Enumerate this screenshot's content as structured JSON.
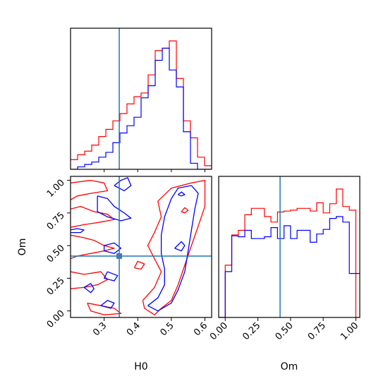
{
  "figure": {
    "type": "corner-plot",
    "parameters": [
      "H0",
      "Om"
    ],
    "colors": {
      "red": "#ff0000",
      "blue": "#0000ff",
      "truth": "#1f77b4"
    }
  },
  "chart_data": [
    {
      "type": "histogram",
      "panel": "H0 marginal",
      "xlim": [
        0.2,
        0.62
      ],
      "truth": 0.345,
      "bin_edges": [
        0.2,
        0.221,
        0.242,
        0.263,
        0.284,
        0.305,
        0.326,
        0.347,
        0.368,
        0.389,
        0.41,
        0.431,
        0.452,
        0.473,
        0.494,
        0.515,
        0.536,
        0.557,
        0.578,
        0.599,
        0.62
      ],
      "series": [
        {
          "color": "red",
          "values": [
            0.08,
            0.12,
            0.15,
            0.2,
            0.27,
            0.33,
            0.4,
            0.46,
            0.54,
            0.6,
            0.63,
            0.78,
            0.98,
            1.0,
            1.06,
            0.75,
            0.4,
            0.26,
            0.1,
            0.03
          ]
        },
        {
          "color": "blue",
          "values": [
            0.0,
            0.02,
            0.04,
            0.06,
            0.1,
            0.14,
            0.22,
            0.3,
            0.36,
            0.43,
            0.59,
            0.69,
            0.9,
            1.0,
            0.82,
            0.68,
            0.31,
            0.05,
            0.0,
            0.0
          ]
        }
      ]
    },
    {
      "type": "contour",
      "panel": "H0 vs Om joint",
      "xlabel": "H0",
      "ylabel": "Om",
      "xlim": [
        0.2,
        0.62
      ],
      "ylim": [
        -0.05,
        1.03
      ],
      "xticks": [
        "0.3",
        "0.4",
        "0.5",
        "0.6"
      ],
      "yticks": [
        "0.00",
        "0.25",
        "0.50",
        "0.75",
        "1.00"
      ],
      "truth": [
        0.345,
        0.42
      ],
      "series": [
        {
          "color": "red",
          "contours": [
            [
              [
                0.2,
                0.98
              ],
              [
                0.26,
                1.0
              ],
              [
                0.3,
                0.98
              ],
              [
                0.31,
                0.92
              ],
              [
                0.26,
                0.9
              ],
              [
                0.22,
                0.88
              ],
              [
                0.2,
                0.85
              ]
            ],
            [
              [
                0.2,
                0.78
              ],
              [
                0.23,
                0.8
              ],
              [
                0.27,
                0.76
              ],
              [
                0.31,
                0.74
              ],
              [
                0.33,
                0.7
              ],
              [
                0.29,
                0.68
              ],
              [
                0.24,
                0.66
              ],
              [
                0.2,
                0.64
              ]
            ],
            [
              [
                0.2,
                0.58
              ],
              [
                0.24,
                0.56
              ],
              [
                0.27,
                0.54
              ],
              [
                0.3,
                0.5
              ],
              [
                0.33,
                0.48
              ],
              [
                0.3,
                0.46
              ],
              [
                0.26,
                0.44
              ],
              [
                0.22,
                0.42
              ],
              [
                0.2,
                0.4
              ]
            ],
            [
              [
                0.2,
                0.3
              ],
              [
                0.24,
                0.28
              ],
              [
                0.29,
                0.3
              ],
              [
                0.31,
                0.24
              ],
              [
                0.28,
                0.2
              ],
              [
                0.24,
                0.18
              ],
              [
                0.2,
                0.17
              ]
            ],
            [
              [
                0.25,
                0.06
              ],
              [
                0.29,
                0.04
              ],
              [
                0.33,
                0.02
              ],
              [
                0.35,
                -0.02
              ],
              [
                0.3,
                -0.03
              ],
              [
                0.26,
                0.0
              ],
              [
                0.25,
                0.06
              ]
            ],
            [
              [
                0.415,
                0.08
              ],
              [
                0.45,
                0.18
              ],
              [
                0.47,
                0.3
              ],
              [
                0.45,
                0.4
              ],
              [
                0.43,
                0.5
              ],
              [
                0.45,
                0.6
              ],
              [
                0.47,
                0.72
              ],
              [
                0.46,
                0.84
              ],
              [
                0.5,
                0.94
              ],
              [
                0.56,
                0.98
              ],
              [
                0.6,
                1.0
              ],
              [
                0.6,
                0.8
              ],
              [
                0.58,
                0.65
              ],
              [
                0.56,
                0.5
              ],
              [
                0.54,
                0.35
              ],
              [
                0.52,
                0.2
              ],
              [
                0.5,
                0.08
              ],
              [
                0.47,
                0.02
              ],
              [
                0.45,
                -0.03
              ],
              [
                0.42,
                0.02
              ],
              [
                0.415,
                0.08
              ]
            ],
            [
              [
                0.39,
                0.33
              ],
              [
                0.4,
                0.38
              ],
              [
                0.42,
                0.36
              ],
              [
                0.41,
                0.32
              ],
              [
                0.39,
                0.33
              ]
            ],
            [
              [
                0.53,
                0.76
              ],
              [
                0.54,
                0.79
              ],
              [
                0.55,
                0.77
              ],
              [
                0.54,
                0.75
              ],
              [
                0.53,
                0.76
              ]
            ]
          ]
        },
        {
          "color": "blue",
          "contours": [
            [
              [
                0.33,
                0.96
              ],
              [
                0.35,
                1.0
              ],
              [
                0.37,
                1.02
              ],
              [
                0.38,
                0.96
              ],
              [
                0.36,
                0.92
              ],
              [
                0.33,
                0.96
              ]
            ],
            [
              [
                0.28,
                0.88
              ],
              [
                0.31,
                0.86
              ],
              [
                0.33,
                0.8
              ],
              [
                0.36,
                0.75
              ],
              [
                0.38,
                0.71
              ],
              [
                0.35,
                0.69
              ],
              [
                0.31,
                0.72
              ],
              [
                0.28,
                0.76
              ],
              [
                0.28,
                0.88
              ]
            ],
            [
              [
                0.2,
                0.62
              ],
              [
                0.22,
                0.63
              ],
              [
                0.24,
                0.62
              ],
              [
                0.23,
                0.6
              ],
              [
                0.2,
                0.6
              ]
            ],
            [
              [
                0.3,
                0.5
              ],
              [
                0.33,
                0.52
              ],
              [
                0.35,
                0.48
              ],
              [
                0.33,
                0.44
              ],
              [
                0.3,
                0.46
              ],
              [
                0.3,
                0.5
              ]
            ],
            [
              [
                0.24,
                0.18
              ],
              [
                0.26,
                0.21
              ],
              [
                0.27,
                0.17
              ],
              [
                0.26,
                0.14
              ],
              [
                0.24,
                0.18
              ]
            ],
            [
              [
                0.31,
                0.3
              ],
              [
                0.34,
                0.27
              ],
              [
                0.33,
                0.23
              ],
              [
                0.3,
                0.25
              ],
              [
                0.31,
                0.3
              ]
            ],
            [
              [
                0.29,
                0.04
              ],
              [
                0.31,
                0.08
              ],
              [
                0.33,
                0.06
              ],
              [
                0.32,
                0.02
              ],
              [
                0.29,
                0.04
              ]
            ],
            [
              [
                0.43,
                0.04
              ],
              [
                0.46,
                0.1
              ],
              [
                0.48,
                0.2
              ],
              [
                0.48,
                0.32
              ],
              [
                0.47,
                0.44
              ],
              [
                0.47,
                0.58
              ],
              [
                0.48,
                0.72
              ],
              [
                0.5,
                0.86
              ],
              [
                0.52,
                0.94
              ],
              [
                0.56,
                0.96
              ],
              [
                0.58,
                0.9
              ],
              [
                0.57,
                0.78
              ],
              [
                0.56,
                0.62
              ],
              [
                0.55,
                0.46
              ],
              [
                0.54,
                0.3
              ],
              [
                0.52,
                0.16
              ],
              [
                0.5,
                0.06
              ],
              [
                0.46,
                0.0
              ],
              [
                0.43,
                0.04
              ]
            ],
            [
              [
                0.52,
                0.89
              ],
              [
                0.53,
                0.91
              ],
              [
                0.54,
                0.89
              ],
              [
                0.53,
                0.88
              ],
              [
                0.52,
                0.89
              ]
            ],
            [
              [
                0.51,
                0.48
              ],
              [
                0.53,
                0.53
              ],
              [
                0.54,
                0.5
              ],
              [
                0.53,
                0.46
              ],
              [
                0.51,
                0.48
              ]
            ]
          ]
        }
      ]
    },
    {
      "type": "histogram",
      "panel": "Om marginal",
      "xlabel": "Om",
      "xlim": [
        -0.05,
        1.03
      ],
      "xticks": [
        "0.00",
        "0.25",
        "0.50",
        "0.75",
        "1.00"
      ],
      "truth": 0.42,
      "bin_edges": [
        -0.05,
        0.0,
        0.05,
        0.1,
        0.15,
        0.2,
        0.25,
        0.3,
        0.35,
        0.4,
        0.45,
        0.5,
        0.55,
        0.6,
        0.65,
        0.7,
        0.75,
        0.8,
        0.85,
        0.9,
        0.95,
        1.0,
        1.03
      ],
      "series": [
        {
          "color": "red",
          "values": [
            0.0,
            0.57,
            0.9,
            0.95,
            1.12,
            1.19,
            1.19,
            1.1,
            1.04,
            1.15,
            1.16,
            1.17,
            1.19,
            1.19,
            1.16,
            1.25,
            1.14,
            1.24,
            1.4,
            1.21,
            1.17,
            0.0
          ]
        },
        {
          "color": "blue",
          "values": [
            0.0,
            0.5,
            0.89,
            0.88,
            0.95,
            0.86,
            0.86,
            0.88,
            0.98,
            0.86,
            1.0,
            0.86,
            0.95,
            0.95,
            0.82,
            0.91,
            0.96,
            1.08,
            1.1,
            1.04,
            0.48,
            0.48
          ]
        }
      ]
    }
  ]
}
